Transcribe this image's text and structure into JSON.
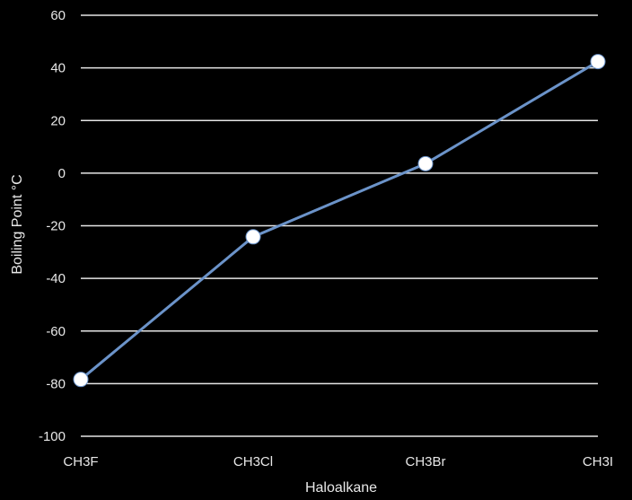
{
  "chart_data": {
    "type": "line",
    "title": "",
    "xlabel": "Haloalkane",
    "ylabel": "Boiling Point °C",
    "categories": [
      "CH3F",
      "CH3Cl",
      "CH3Br",
      "CH3I"
    ],
    "series": [
      {
        "values": [
          -78.4,
          -24.2,
          3.6,
          42.4
        ]
      }
    ],
    "ylim": [
      -100,
      60
    ],
    "yticks": [
      60,
      40,
      20,
      0,
      -20,
      -40,
      -60,
      -80,
      -100
    ],
    "grid": true,
    "legend": "none",
    "colors": {
      "background": "#000000",
      "line": "#6b93c9",
      "marker": "#ffffff",
      "grid": "#e6e6e6",
      "text": "#e8e8e8"
    }
  }
}
